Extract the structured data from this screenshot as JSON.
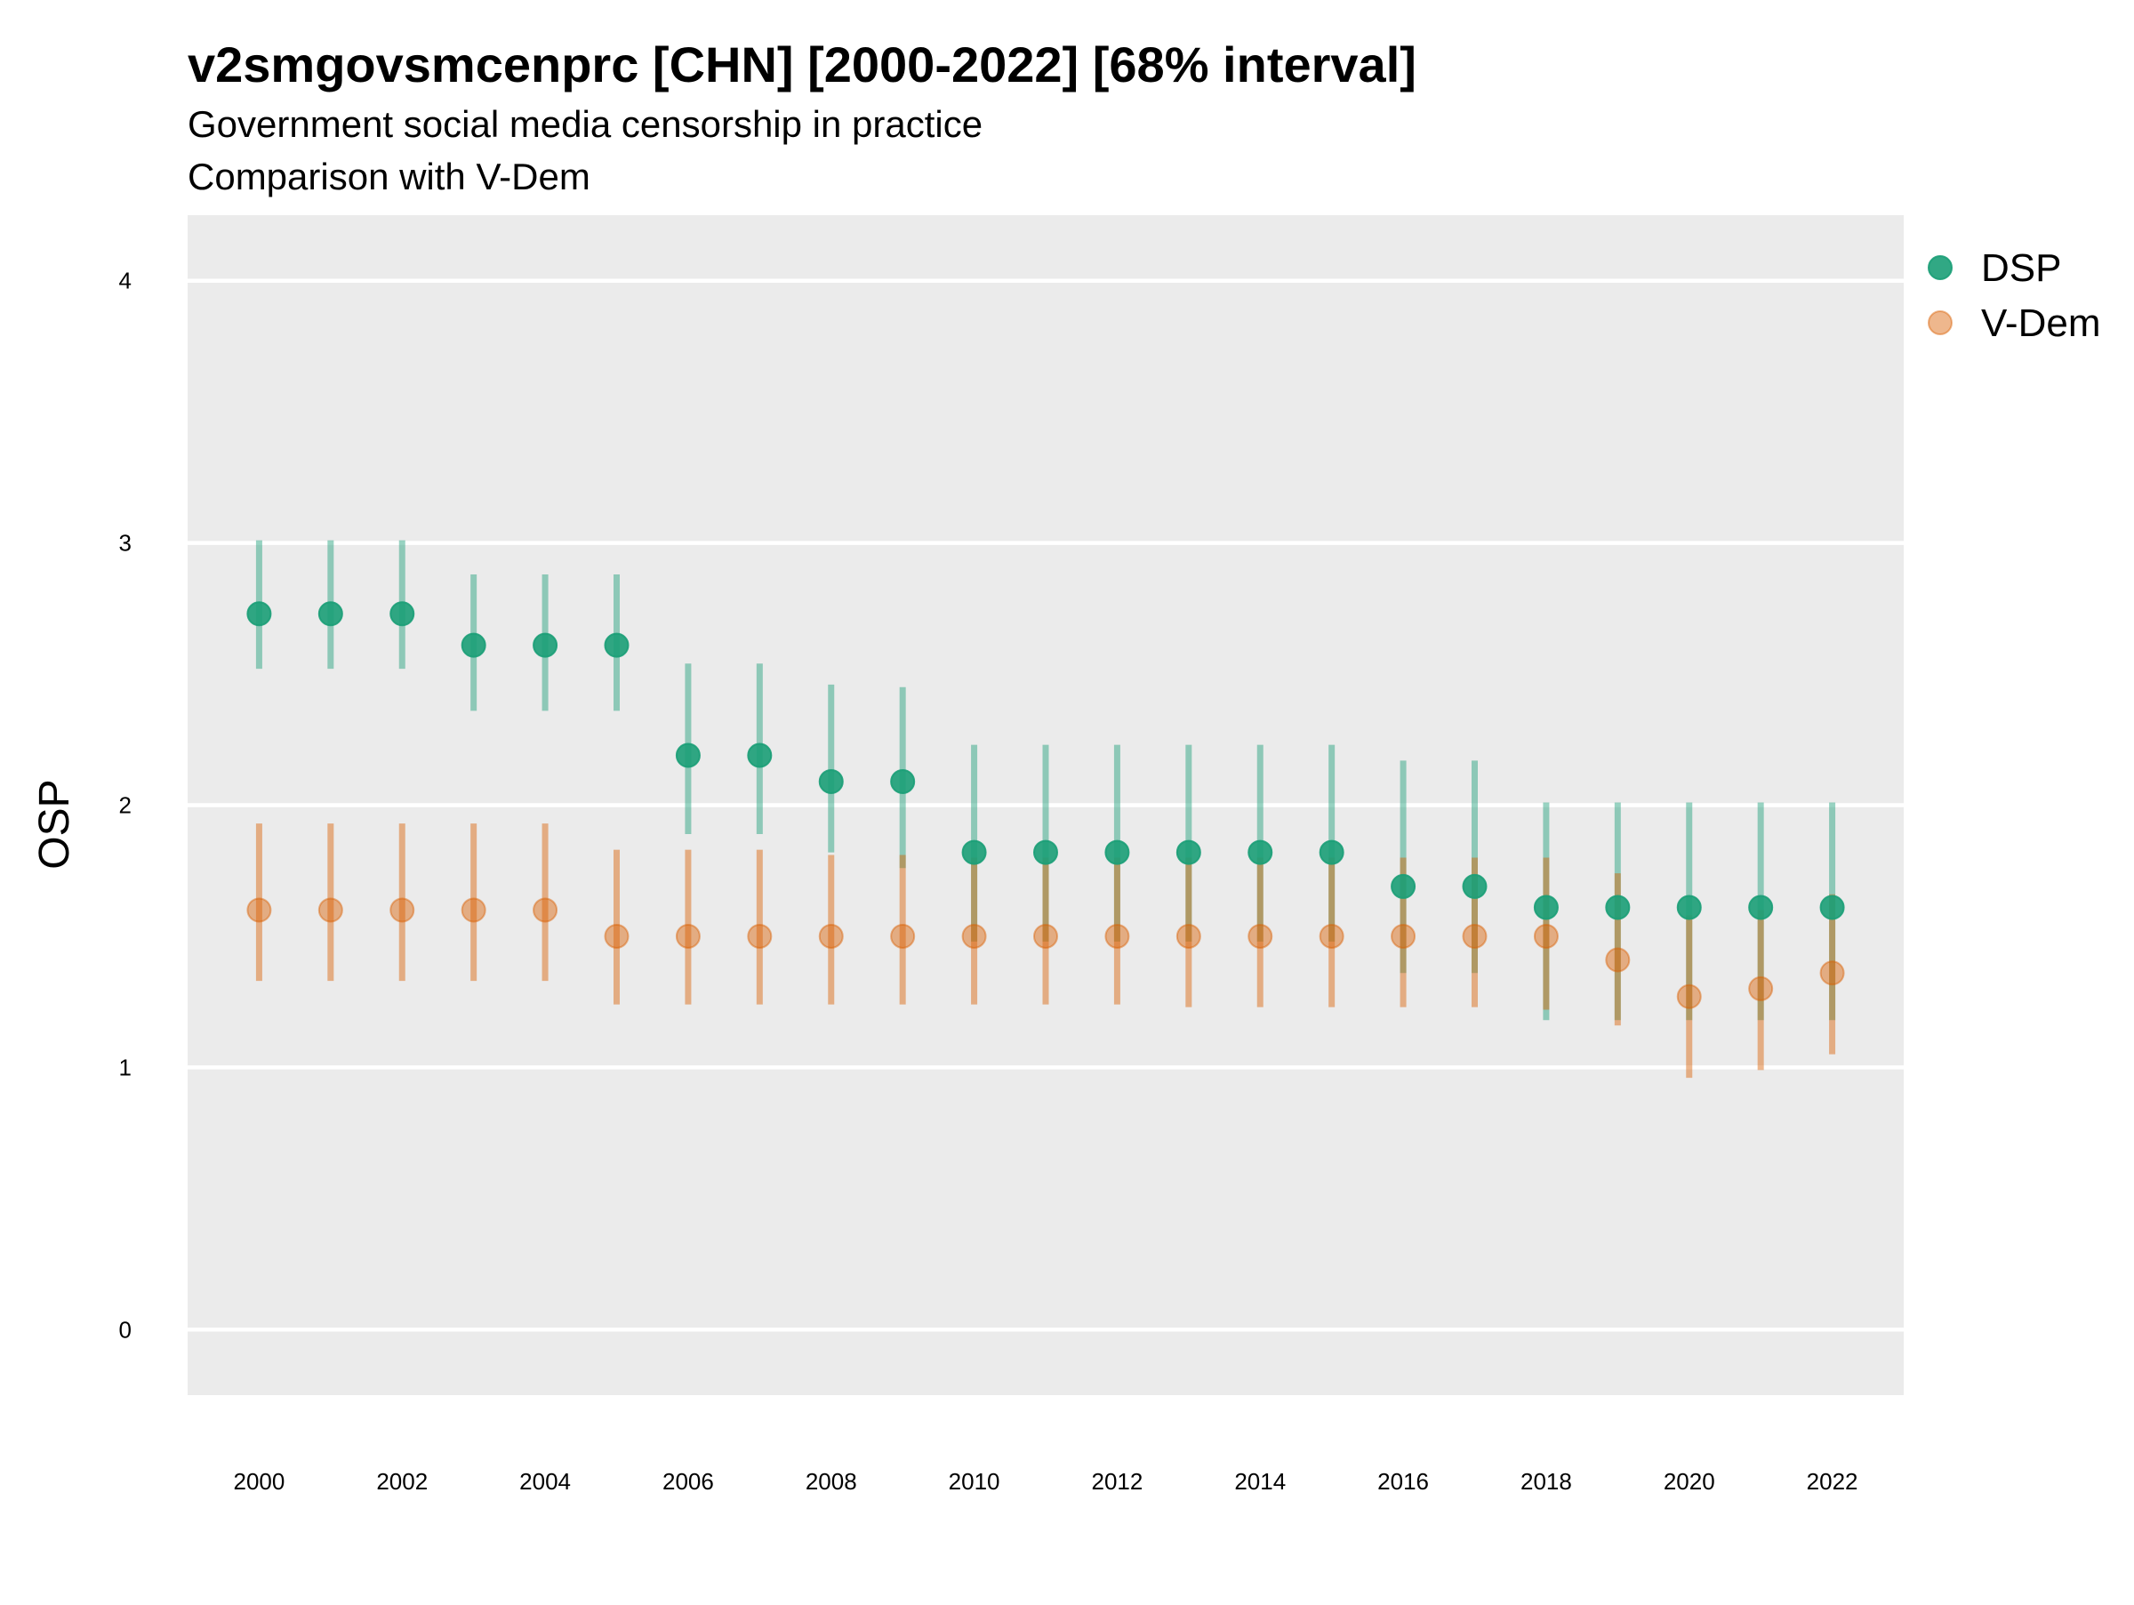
{
  "chart_data": {
    "type": "scatter",
    "title": "v2smgovsmcenprc [CHN] [2000-2022] [68% interval]",
    "subtitle_line1": "Government social media censorship in practice",
    "subtitle_line2": "Comparison with V-Dem",
    "xlabel": "",
    "ylabel": "OSP",
    "ylim": [
      -0.25,
      4.25
    ],
    "xlim": [
      1999,
      2023
    ],
    "y_ticks": [
      0,
      1,
      2,
      3,
      4
    ],
    "x_ticks": [
      2000,
      2002,
      2004,
      2006,
      2008,
      2010,
      2012,
      2014,
      2016,
      2018,
      2020,
      2022
    ],
    "grid": true,
    "legend_position": "right",
    "series": [
      {
        "name": "DSP",
        "color": "#1b9e77",
        "points": [
          {
            "x": 2000,
            "y": 2.73,
            "low": 2.52,
            "high": 3.01
          },
          {
            "x": 2001,
            "y": 2.73,
            "low": 2.52,
            "high": 3.01
          },
          {
            "x": 2002,
            "y": 2.73,
            "low": 2.52,
            "high": 3.01
          },
          {
            "x": 2003,
            "y": 2.61,
            "low": 2.36,
            "high": 2.88
          },
          {
            "x": 2004,
            "y": 2.61,
            "low": 2.36,
            "high": 2.88
          },
          {
            "x": 2005,
            "y": 2.61,
            "low": 2.36,
            "high": 2.88
          },
          {
            "x": 2006,
            "y": 2.19,
            "low": 1.89,
            "high": 2.54
          },
          {
            "x": 2007,
            "y": 2.19,
            "low": 1.89,
            "high": 2.54
          },
          {
            "x": 2008,
            "y": 2.09,
            "low": 1.82,
            "high": 2.46
          },
          {
            "x": 2009,
            "y": 2.09,
            "low": 1.76,
            "high": 2.45
          },
          {
            "x": 2010,
            "y": 1.82,
            "low": 1.48,
            "high": 2.23
          },
          {
            "x": 2011,
            "y": 1.82,
            "low": 1.48,
            "high": 2.23
          },
          {
            "x": 2012,
            "y": 1.82,
            "low": 1.48,
            "high": 2.23
          },
          {
            "x": 2013,
            "y": 1.82,
            "low": 1.48,
            "high": 2.23
          },
          {
            "x": 2014,
            "y": 1.82,
            "low": 1.48,
            "high": 2.23
          },
          {
            "x": 2015,
            "y": 1.82,
            "low": 1.48,
            "high": 2.23
          },
          {
            "x": 2016,
            "y": 1.69,
            "low": 1.36,
            "high": 2.17
          },
          {
            "x": 2017,
            "y": 1.69,
            "low": 1.36,
            "high": 2.17
          },
          {
            "x": 2018,
            "y": 1.61,
            "low": 1.18,
            "high": 2.01
          },
          {
            "x": 2019,
            "y": 1.61,
            "low": 1.18,
            "high": 2.01
          },
          {
            "x": 2020,
            "y": 1.61,
            "low": 1.18,
            "high": 2.01
          },
          {
            "x": 2021,
            "y": 1.61,
            "low": 1.18,
            "high": 2.01
          },
          {
            "x": 2022,
            "y": 1.61,
            "low": 1.18,
            "high": 2.01
          }
        ]
      },
      {
        "name": "V-Dem",
        "color": "#d95f02",
        "points": [
          {
            "x": 2000,
            "y": 1.6,
            "low": 1.33,
            "high": 1.93
          },
          {
            "x": 2001,
            "y": 1.6,
            "low": 1.33,
            "high": 1.93
          },
          {
            "x": 2002,
            "y": 1.6,
            "low": 1.33,
            "high": 1.93
          },
          {
            "x": 2003,
            "y": 1.6,
            "low": 1.33,
            "high": 1.93
          },
          {
            "x": 2004,
            "y": 1.6,
            "low": 1.33,
            "high": 1.93
          },
          {
            "x": 2005,
            "y": 1.5,
            "low": 1.24,
            "high": 1.83
          },
          {
            "x": 2006,
            "y": 1.5,
            "low": 1.24,
            "high": 1.83
          },
          {
            "x": 2007,
            "y": 1.5,
            "low": 1.24,
            "high": 1.83
          },
          {
            "x": 2008,
            "y": 1.5,
            "low": 1.24,
            "high": 1.81
          },
          {
            "x": 2009,
            "y": 1.5,
            "low": 1.24,
            "high": 1.81
          },
          {
            "x": 2010,
            "y": 1.5,
            "low": 1.24,
            "high": 1.8
          },
          {
            "x": 2011,
            "y": 1.5,
            "low": 1.24,
            "high": 1.8
          },
          {
            "x": 2012,
            "y": 1.5,
            "low": 1.24,
            "high": 1.8
          },
          {
            "x": 2013,
            "y": 1.5,
            "low": 1.23,
            "high": 1.8
          },
          {
            "x": 2014,
            "y": 1.5,
            "low": 1.23,
            "high": 1.8
          },
          {
            "x": 2015,
            "y": 1.5,
            "low": 1.23,
            "high": 1.8
          },
          {
            "x": 2016,
            "y": 1.5,
            "low": 1.23,
            "high": 1.8
          },
          {
            "x": 2017,
            "y": 1.5,
            "low": 1.23,
            "high": 1.8
          },
          {
            "x": 2018,
            "y": 1.5,
            "low": 1.22,
            "high": 1.8
          },
          {
            "x": 2019,
            "y": 1.41,
            "low": 1.16,
            "high": 1.74
          },
          {
            "x": 2020,
            "y": 1.27,
            "low": 0.96,
            "high": 1.58
          },
          {
            "x": 2021,
            "y": 1.3,
            "low": 0.99,
            "high": 1.6
          },
          {
            "x": 2022,
            "y": 1.36,
            "low": 1.05,
            "high": 1.66
          }
        ]
      }
    ]
  }
}
